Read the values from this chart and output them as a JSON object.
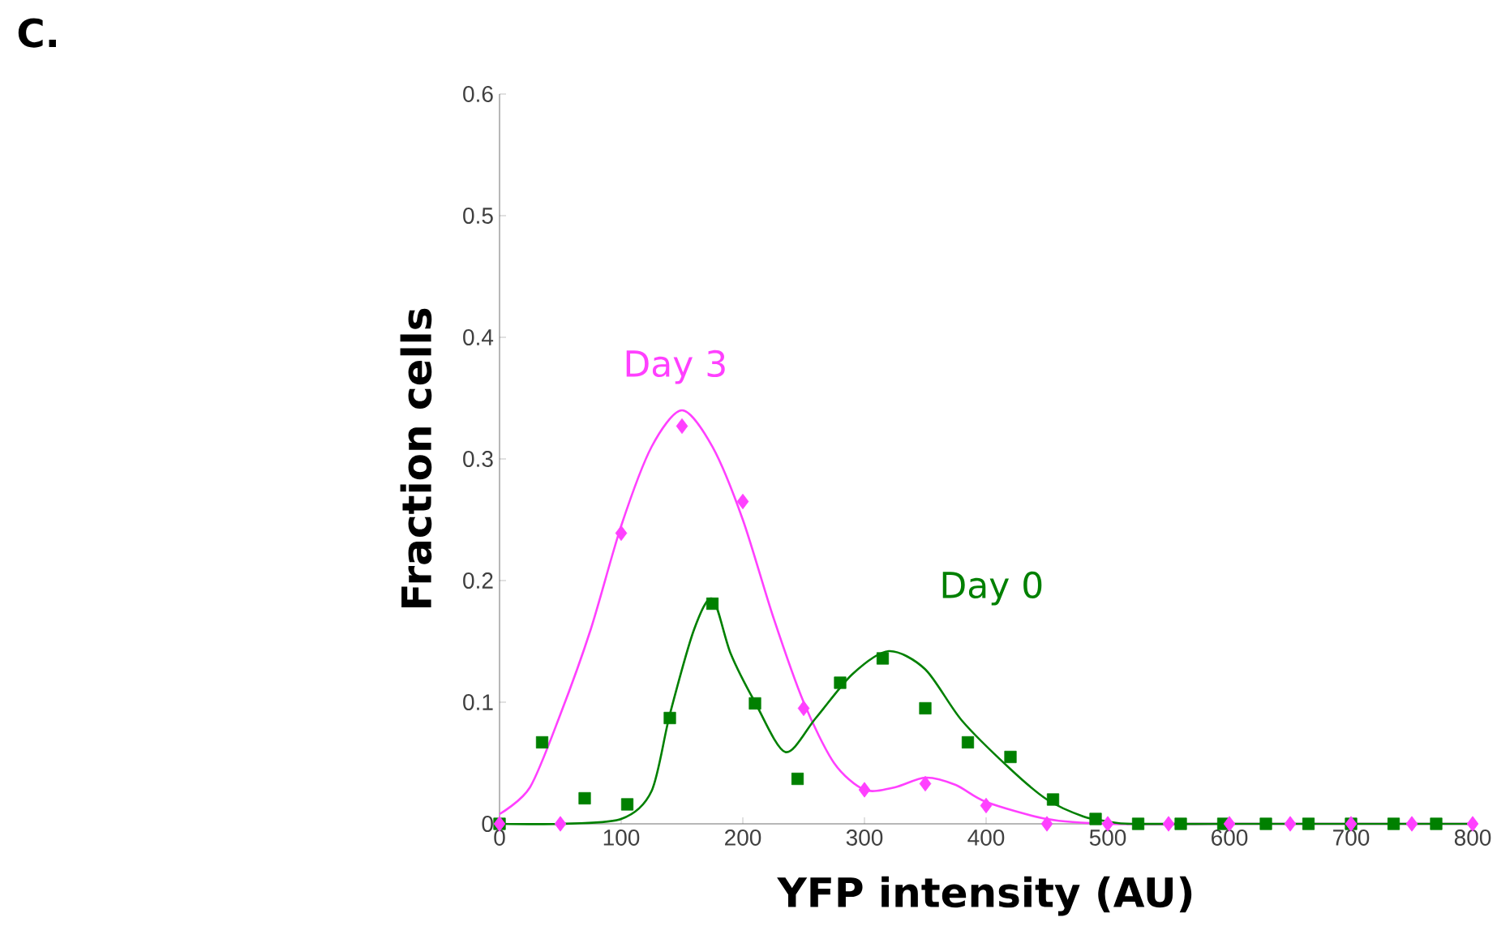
{
  "chart_data": {
    "type": "scatter",
    "xlabel": "YFP intensity (AU)",
    "ylabel": "Fraction cells",
    "xlim": [
      0,
      800
    ],
    "xticks": [
      0,
      100,
      200,
      300,
      400,
      500,
      600,
      700,
      800
    ],
    "ylim": [
      0,
      0.6
    ],
    "yticks": [
      0,
      0.1,
      0.2,
      0.3,
      0.4,
      0.5,
      0.6
    ],
    "series": [
      {
        "type": "line",
        "name": "Day 3",
        "color": "#ff40ff",
        "x": [
          0,
          25,
          50,
          75,
          100,
          125,
          150,
          175,
          200,
          225,
          250,
          275,
          300,
          325,
          350,
          375,
          400,
          450,
          500,
          600,
          700,
          800
        ],
        "values": [
          0.008,
          0.03,
          0.09,
          0.16,
          0.245,
          0.31,
          0.34,
          0.31,
          0.25,
          0.17,
          0.1,
          0.05,
          0.028,
          0.03,
          0.038,
          0.032,
          0.018,
          0.004,
          0,
          0,
          0,
          0
        ]
      },
      {
        "type": "line",
        "name": "Day 0",
        "color": "#008000",
        "x": [
          0,
          50,
          100,
          125,
          140,
          160,
          175,
          190,
          210,
          235,
          260,
          290,
          320,
          350,
          380,
          420,
          450,
          480,
          500,
          520,
          600,
          700,
          800
        ],
        "values": [
          0,
          0,
          0.004,
          0.027,
          0.09,
          0.16,
          0.185,
          0.14,
          0.1,
          0.059,
          0.087,
          0.123,
          0.142,
          0.127,
          0.085,
          0.045,
          0.02,
          0.006,
          0.002,
          0,
          0,
          0,
          0
        ]
      },
      {
        "marker": "square",
        "color": "#008000",
        "x": [
          0,
          35,
          70,
          105,
          140,
          175,
          210,
          245,
          280,
          315,
          350,
          385,
          420,
          455,
          490,
          525,
          560,
          595,
          630,
          665,
          700,
          735,
          770
        ],
        "values": [
          0,
          0.067,
          0.021,
          0.016,
          0.087,
          0.181,
          0.099,
          0.037,
          0.116,
          0.136,
          0.095,
          0.067,
          0.055,
          0.02,
          0.004,
          0,
          0,
          0,
          0,
          0,
          0,
          0,
          0
        ]
      },
      {
        "marker": "diamond",
        "color": "#ff40ff",
        "x": [
          0,
          50,
          100,
          150,
          200,
          250,
          300,
          350,
          400,
          450,
          500,
          550,
          600,
          650,
          700,
          750,
          800
        ],
        "values": [
          0,
          0,
          0.239,
          0.327,
          0.265,
          0.095,
          0.028,
          0.033,
          0.015,
          0,
          0,
          0,
          0,
          0,
          0,
          0,
          0
        ]
      }
    ],
    "annotations": [
      "C."
    ]
  }
}
